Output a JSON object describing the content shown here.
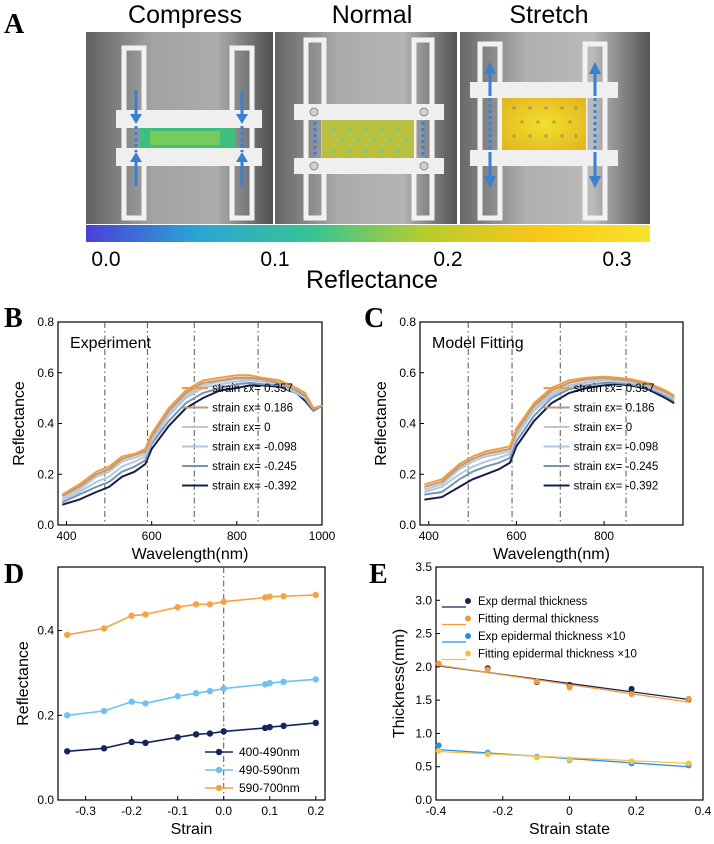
{
  "panel_letters": [
    "A",
    "B",
    "C",
    "D",
    "E"
  ],
  "panel_a": {
    "titles": [
      "Compress",
      "Normal",
      "Stretch"
    ],
    "colorbar_ticks": [
      "0.0",
      "0.1",
      "0.2",
      "0.3"
    ],
    "colorbar_label": "Reflectance",
    "colorbar_colors": [
      "#4b3fd8",
      "#2aa6d6",
      "#34c495",
      "#b6cd2e",
      "#f9c61a",
      "#f7e32b"
    ]
  },
  "legend_bc": [
    {
      "text": "strain εx=  0.357",
      "color": "#f59a3e"
    },
    {
      "text": "strain εx=  0.186",
      "color": "#b59a82"
    },
    {
      "text": "strain εx=   0",
      "color": "#c5c5c5"
    },
    {
      "text": "strain εx=  -0.098",
      "color": "#a9c9e6"
    },
    {
      "text": "strain εx=  -0.245",
      "color": "#7b93ad"
    },
    {
      "text": "strain εx=  -0.392",
      "color": "#151f4f"
    }
  ],
  "chart_data": [
    {
      "panel": "B",
      "type": "line",
      "annotation": "Experiment",
      "xlabel": "Wavelength(nm)",
      "ylabel": "Reflectance",
      "xlim": [
        380,
        1000
      ],
      "ylim": [
        0.0,
        0.8
      ],
      "xticks": [
        400,
        600,
        800,
        1000
      ],
      "yticks": [
        0.0,
        0.2,
        0.4,
        0.6,
        0.8
      ],
      "vlines": [
        490,
        590,
        700,
        850
      ],
      "x": [
        390,
        430,
        470,
        500,
        530,
        560,
        585,
        600,
        640,
        680,
        720,
        760,
        800,
        830,
        860,
        900,
        940,
        960,
        980,
        1000
      ],
      "series": [
        {
          "name": "0.357",
          "color": "#f59a3e",
          "values": [
            0.12,
            0.16,
            0.21,
            0.23,
            0.27,
            0.28,
            0.3,
            0.36,
            0.46,
            0.53,
            0.57,
            0.58,
            0.59,
            0.59,
            0.58,
            0.57,
            0.54,
            0.52,
            0.46,
            0.47
          ]
        },
        {
          "name": "0.186",
          "color": "#b59a82",
          "values": [
            0.115,
            0.15,
            0.2,
            0.22,
            0.26,
            0.275,
            0.29,
            0.35,
            0.45,
            0.52,
            0.56,
            0.57,
            0.58,
            0.58,
            0.575,
            0.56,
            0.53,
            0.51,
            0.46,
            0.47
          ]
        },
        {
          "name": "0",
          "color": "#c5c5c5",
          "values": [
            0.11,
            0.14,
            0.19,
            0.21,
            0.25,
            0.265,
            0.28,
            0.34,
            0.44,
            0.51,
            0.55,
            0.565,
            0.575,
            0.575,
            0.57,
            0.56,
            0.53,
            0.51,
            0.46,
            0.47
          ]
        },
        {
          "name": "-0.098",
          "color": "#a9c9e6",
          "values": [
            0.1,
            0.13,
            0.17,
            0.19,
            0.23,
            0.25,
            0.27,
            0.33,
            0.43,
            0.5,
            0.54,
            0.555,
            0.565,
            0.57,
            0.565,
            0.555,
            0.52,
            0.5,
            0.46,
            0.47
          ]
        },
        {
          "name": "-0.245",
          "color": "#7b93ad",
          "values": [
            0.09,
            0.12,
            0.15,
            0.17,
            0.21,
            0.23,
            0.255,
            0.32,
            0.41,
            0.48,
            0.52,
            0.54,
            0.555,
            0.56,
            0.555,
            0.55,
            0.52,
            0.5,
            0.45,
            0.47
          ]
        },
        {
          "name": "-0.392",
          "color": "#151f4f",
          "values": [
            0.08,
            0.1,
            0.13,
            0.15,
            0.19,
            0.21,
            0.24,
            0.3,
            0.39,
            0.46,
            0.5,
            0.53,
            0.54,
            0.55,
            0.55,
            0.545,
            0.52,
            0.49,
            0.45,
            0.47
          ]
        }
      ]
    },
    {
      "panel": "C",
      "type": "line",
      "annotation": "Model Fitting",
      "xlabel": "Wavelength(nm)",
      "ylabel": "Reflectance",
      "xlim": [
        380,
        980
      ],
      "ylim": [
        0.0,
        0.8
      ],
      "xticks": [
        400,
        600,
        800
      ],
      "yticks": [
        0.0,
        0.2,
        0.4,
        0.6,
        0.8
      ],
      "vlines": [
        490,
        590,
        700,
        850
      ],
      "x": [
        390,
        430,
        470,
        500,
        530,
        560,
        585,
        600,
        640,
        680,
        720,
        760,
        800,
        830,
        860,
        900,
        940,
        960
      ],
      "series": [
        {
          "name": "0.357",
          "color": "#f59a3e",
          "values": [
            0.16,
            0.18,
            0.24,
            0.27,
            0.29,
            0.3,
            0.31,
            0.38,
            0.48,
            0.54,
            0.57,
            0.58,
            0.585,
            0.58,
            0.575,
            0.56,
            0.53,
            0.51
          ]
        },
        {
          "name": "0.186",
          "color": "#b59a82",
          "values": [
            0.15,
            0.17,
            0.23,
            0.26,
            0.28,
            0.29,
            0.3,
            0.37,
            0.47,
            0.53,
            0.56,
            0.575,
            0.58,
            0.575,
            0.57,
            0.555,
            0.525,
            0.505
          ]
        },
        {
          "name": "0",
          "color": "#c5c5c5",
          "values": [
            0.14,
            0.16,
            0.22,
            0.25,
            0.27,
            0.28,
            0.29,
            0.36,
            0.46,
            0.52,
            0.55,
            0.565,
            0.575,
            0.57,
            0.565,
            0.55,
            0.52,
            0.5
          ]
        },
        {
          "name": "-0.098",
          "color": "#a9c9e6",
          "values": [
            0.13,
            0.15,
            0.2,
            0.23,
            0.25,
            0.265,
            0.28,
            0.35,
            0.45,
            0.51,
            0.545,
            0.56,
            0.57,
            0.565,
            0.56,
            0.545,
            0.515,
            0.495
          ]
        },
        {
          "name": "-0.245",
          "color": "#7b93ad",
          "values": [
            0.12,
            0.13,
            0.18,
            0.21,
            0.23,
            0.245,
            0.265,
            0.33,
            0.43,
            0.5,
            0.535,
            0.55,
            0.56,
            0.56,
            0.555,
            0.54,
            0.51,
            0.49
          ]
        },
        {
          "name": "-0.392",
          "color": "#151f4f",
          "values": [
            0.1,
            0.11,
            0.15,
            0.18,
            0.2,
            0.22,
            0.245,
            0.31,
            0.41,
            0.48,
            0.52,
            0.54,
            0.55,
            0.555,
            0.55,
            0.535,
            0.5,
            0.48
          ]
        }
      ]
    },
    {
      "panel": "D",
      "type": "line",
      "xlabel": "Strain",
      "ylabel": "Reflectance",
      "xlim": [
        -0.36,
        0.22
      ],
      "ylim": [
        0.0,
        0.55
      ],
      "xticks": [
        -0.3,
        -0.2,
        -0.1,
        0.0,
        0.1,
        0.2
      ],
      "xtick_labels": [
        "-0.3",
        "-0.2",
        "-0.1",
        "0.0",
        "0.1",
        "0.2"
      ],
      "yticks": [
        0.0,
        0.2,
        0.4
      ],
      "ytick_labels": [
        "0.0",
        "0.2",
        "0.4"
      ],
      "vlines": [
        0.0
      ],
      "x": [
        -0.34,
        -0.26,
        -0.2,
        -0.17,
        -0.1,
        -0.06,
        -0.03,
        0.0,
        0.09,
        0.1,
        0.13,
        0.2
      ],
      "series": [
        {
          "name": "400-490nm",
          "color": "#15255a",
          "values": [
            0.115,
            0.122,
            0.137,
            0.135,
            0.148,
            0.155,
            0.157,
            0.162,
            0.17,
            0.172,
            0.175,
            0.182
          ]
        },
        {
          "name": "490-590nm",
          "color": "#6ec1f0",
          "values": [
            0.2,
            0.21,
            0.232,
            0.228,
            0.245,
            0.252,
            0.257,
            0.263,
            0.273,
            0.276,
            0.279,
            0.285
          ]
        },
        {
          "name": "590-700nm",
          "color": "#f6a245",
          "values": [
            0.39,
            0.405,
            0.435,
            0.438,
            0.455,
            0.462,
            0.462,
            0.468,
            0.478,
            0.48,
            0.481,
            0.484
          ]
        }
      ]
    },
    {
      "panel": "E",
      "type": "scatter",
      "xlabel": "Strain state",
      "ylabel": "Thickness(mm)",
      "xlim": [
        -0.4,
        0.4
      ],
      "ylim": [
        0.0,
        3.5
      ],
      "xticks": [
        -0.4,
        -0.2,
        0.0,
        0.2,
        0.4
      ],
      "xtick_labels": [
        "-0.4",
        "-0.2",
        "0",
        "0.2",
        "0.4"
      ],
      "yticks": [
        0.0,
        0.5,
        1.0,
        1.5,
        2.0,
        2.5,
        3.0,
        3.5
      ],
      "ytick_labels": [
        "0.0",
        "0.5",
        "1.0",
        "1.5",
        "2.0",
        "2.5",
        "3.0",
        "3.5"
      ],
      "series": [
        {
          "name": "Exp dermal thickness",
          "color": "#16244f",
          "x": [
            -0.392,
            -0.245,
            -0.098,
            0.0,
            0.186,
            0.357
          ],
          "values": [
            2.04,
            1.98,
            1.77,
            1.73,
            1.67,
            1.51
          ],
          "fit": [
            2.02,
            1.51
          ]
        },
        {
          "name": "Fitting dermal thickness",
          "color": "#f39a3c",
          "x": [
            -0.392,
            -0.245,
            -0.098,
            0.0,
            0.186,
            0.357
          ],
          "values": [
            2.05,
            1.96,
            1.78,
            1.69,
            1.59,
            1.52
          ],
          "fit": [
            2.03,
            1.47
          ]
        },
        {
          "name": "Exp epidermal thickness ×10",
          "color": "#2a8fe0",
          "x": [
            -0.392,
            -0.245,
            -0.098,
            0.0,
            0.186,
            0.357
          ],
          "values": [
            0.82,
            0.71,
            0.65,
            0.6,
            0.55,
            0.52
          ],
          "fit": [
            0.76,
            0.5
          ]
        },
        {
          "name": "Fitting epidermal thickness ×10",
          "color": "#f5c14a",
          "x": [
            -0.392,
            -0.245,
            -0.098,
            0.0,
            0.186,
            0.357
          ],
          "values": [
            0.74,
            0.69,
            0.64,
            0.61,
            0.58,
            0.55
          ],
          "fit": [
            0.73,
            0.55
          ]
        }
      ]
    }
  ]
}
